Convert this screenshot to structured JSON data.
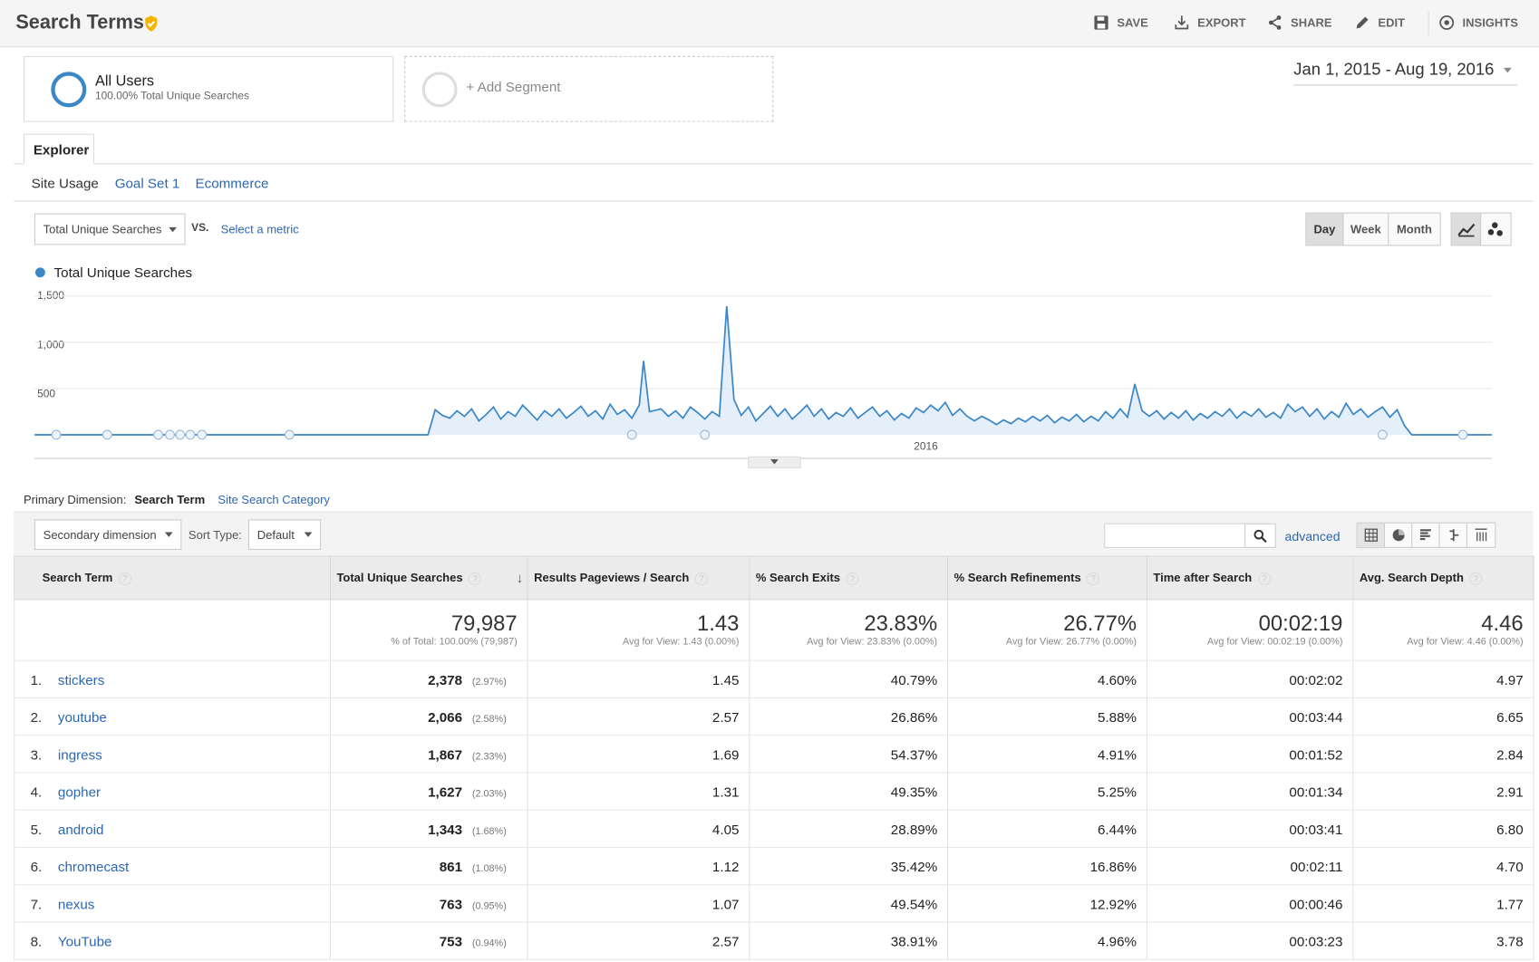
{
  "page": {
    "title": "Search Terms"
  },
  "toolbar": {
    "save": "SAVE",
    "export": "EXPORT",
    "share": "SHARE",
    "edit": "EDIT",
    "insights": "INSIGHTS"
  },
  "segments": {
    "primary_name": "All Users",
    "primary_desc": "100.00% Total Unique Searches",
    "add": "+ Add Segment"
  },
  "date_range": "Jan 1, 2015 - Aug 19, 2016",
  "tabs": {
    "explorer": "Explorer"
  },
  "subtabs": {
    "site_usage": "Site Usage",
    "goal_set": "Goal Set 1",
    "ecommerce": "Ecommerce"
  },
  "metric": {
    "selected": "Total Unique Searches",
    "vs": "VS.",
    "select": "Select a metric"
  },
  "granularity": {
    "day": "Day",
    "week": "Week",
    "month": "Month",
    "active": "Day"
  },
  "chart_data": {
    "type": "line",
    "series": [
      {
        "name": "Total Unique Searches",
        "color": "#3b87c8"
      }
    ],
    "ylim": [
      0,
      1500
    ],
    "yticks": [
      "1,500",
      "1,000",
      "500"
    ],
    "xtick": "2016",
    "points": [
      [
        0,
        0
      ],
      [
        0.08,
        0
      ],
      [
        0.27,
        0
      ],
      [
        0.275,
        270
      ],
      [
        0.28,
        210
      ],
      [
        0.285,
        180
      ],
      [
        0.29,
        260
      ],
      [
        0.295,
        200
      ],
      [
        0.3,
        280
      ],
      [
        0.305,
        150
      ],
      [
        0.31,
        220
      ],
      [
        0.315,
        300
      ],
      [
        0.32,
        170
      ],
      [
        0.325,
        250
      ],
      [
        0.33,
        200
      ],
      [
        0.335,
        320
      ],
      [
        0.34,
        240
      ],
      [
        0.345,
        160
      ],
      [
        0.35,
        260
      ],
      [
        0.355,
        200
      ],
      [
        0.36,
        280
      ],
      [
        0.365,
        180
      ],
      [
        0.37,
        240
      ],
      [
        0.375,
        310
      ],
      [
        0.38,
        200
      ],
      [
        0.385,
        260
      ],
      [
        0.39,
        170
      ],
      [
        0.395,
        330
      ],
      [
        0.4,
        220
      ],
      [
        0.405,
        270
      ],
      [
        0.41,
        180
      ],
      [
        0.415,
        320
      ],
      [
        0.418,
        800
      ],
      [
        0.422,
        250
      ],
      [
        0.43,
        280
      ],
      [
        0.435,
        200
      ],
      [
        0.44,
        260
      ],
      [
        0.445,
        180
      ],
      [
        0.45,
        300
      ],
      [
        0.455,
        240
      ],
      [
        0.46,
        170
      ],
      [
        0.465,
        250
      ],
      [
        0.47,
        200
      ],
      [
        0.475,
        1390
      ],
      [
        0.48,
        380
      ],
      [
        0.485,
        210
      ],
      [
        0.49,
        300
      ],
      [
        0.495,
        150
      ],
      [
        0.5,
        230
      ],
      [
        0.505,
        310
      ],
      [
        0.51,
        200
      ],
      [
        0.515,
        280
      ],
      [
        0.52,
        170
      ],
      [
        0.525,
        240
      ],
      [
        0.53,
        320
      ],
      [
        0.535,
        200
      ],
      [
        0.54,
        280
      ],
      [
        0.545,
        170
      ],
      [
        0.55,
        240
      ],
      [
        0.555,
        200
      ],
      [
        0.56,
        290
      ],
      [
        0.565,
        180
      ],
      [
        0.57,
        240
      ],
      [
        0.575,
        300
      ],
      [
        0.58,
        200
      ],
      [
        0.585,
        260
      ],
      [
        0.59,
        160
      ],
      [
        0.595,
        230
      ],
      [
        0.6,
        180
      ],
      [
        0.605,
        290
      ],
      [
        0.61,
        240
      ],
      [
        0.615,
        320
      ],
      [
        0.62,
        260
      ],
      [
        0.625,
        350
      ],
      [
        0.63,
        210
      ],
      [
        0.635,
        280
      ],
      [
        0.64,
        200
      ],
      [
        0.645,
        150
      ],
      [
        0.65,
        200
      ],
      [
        0.655,
        160
      ],
      [
        0.66,
        110
      ],
      [
        0.665,
        160
      ],
      [
        0.67,
        120
      ],
      [
        0.675,
        180
      ],
      [
        0.68,
        140
      ],
      [
        0.685,
        200
      ],
      [
        0.69,
        150
      ],
      [
        0.695,
        210
      ],
      [
        0.7,
        130
      ],
      [
        0.705,
        190
      ],
      [
        0.71,
        150
      ],
      [
        0.715,
        220
      ],
      [
        0.72,
        140
      ],
      [
        0.725,
        200
      ],
      [
        0.73,
        150
      ],
      [
        0.735,
        250
      ],
      [
        0.74,
        180
      ],
      [
        0.745,
        280
      ],
      [
        0.75,
        190
      ],
      [
        0.755,
        550
      ],
      [
        0.76,
        260
      ],
      [
        0.765,
        200
      ],
      [
        0.77,
        260
      ],
      [
        0.775,
        170
      ],
      [
        0.78,
        240
      ],
      [
        0.785,
        180
      ],
      [
        0.79,
        260
      ],
      [
        0.795,
        160
      ],
      [
        0.8,
        230
      ],
      [
        0.805,
        180
      ],
      [
        0.81,
        250
      ],
      [
        0.815,
        200
      ],
      [
        0.82,
        280
      ],
      [
        0.825,
        180
      ],
      [
        0.83,
        250
      ],
      [
        0.835,
        200
      ],
      [
        0.84,
        280
      ],
      [
        0.845,
        190
      ],
      [
        0.85,
        240
      ],
      [
        0.855,
        180
      ],
      [
        0.86,
        330
      ],
      [
        0.865,
        250
      ],
      [
        0.87,
        300
      ],
      [
        0.875,
        200
      ],
      [
        0.88,
        280
      ],
      [
        0.885,
        170
      ],
      [
        0.89,
        250
      ],
      [
        0.895,
        190
      ],
      [
        0.9,
        340
      ],
      [
        0.905,
        220
      ],
      [
        0.91,
        280
      ],
      [
        0.915,
        190
      ],
      [
        0.92,
        250
      ],
      [
        0.925,
        300
      ],
      [
        0.93,
        190
      ],
      [
        0.935,
        270
      ],
      [
        0.94,
        100
      ],
      [
        0.945,
        0
      ],
      [
        0.96,
        0
      ],
      [
        1,
        0
      ]
    ]
  },
  "dimension": {
    "label": "Primary Dimension:",
    "current": "Search Term",
    "other": "Site Search Category"
  },
  "controls": {
    "secondary": "Secondary dimension",
    "sort_label": "Sort Type:",
    "sort_value": "Default",
    "advanced": "advanced",
    "search_value": ""
  },
  "table": {
    "headers": [
      "Search Term",
      "Total Unique Searches",
      "Results Pageviews / Search",
      "% Search Exits",
      "% Search Refinements",
      "Time after Search",
      "Avg. Search Depth"
    ],
    "totals": [
      {
        "big": "79,987",
        "sub": "% of Total: 100.00% (79,987)"
      },
      {
        "big": "1.43",
        "sub": "Avg for View: 1.43 (0.00%)"
      },
      {
        "big": "23.83%",
        "sub": "Avg for View: 23.83% (0.00%)"
      },
      {
        "big": "26.77%",
        "sub": "Avg for View: 26.77% (0.00%)"
      },
      {
        "big": "00:02:19",
        "sub": "Avg for View: 00:02:19 (0.00%)"
      },
      {
        "big": "4.46",
        "sub": "Avg for View: 4.46 (0.00%)"
      }
    ],
    "rows": [
      {
        "n": "1.",
        "term": "stickers",
        "searches": "2,378",
        "pct": "(2.97%)",
        "rpv": "1.45",
        "exits": "40.79%",
        "ref": "4.60%",
        "time": "00:02:02",
        "depth": "4.97"
      },
      {
        "n": "2.",
        "term": "youtube",
        "searches": "2,066",
        "pct": "(2.58%)",
        "rpv": "2.57",
        "exits": "26.86%",
        "ref": "5.88%",
        "time": "00:03:44",
        "depth": "6.65"
      },
      {
        "n": "3.",
        "term": "ingress",
        "searches": "1,867",
        "pct": "(2.33%)",
        "rpv": "1.69",
        "exits": "54.37%",
        "ref": "4.91%",
        "time": "00:01:52",
        "depth": "2.84"
      },
      {
        "n": "4.",
        "term": "gopher",
        "searches": "1,627",
        "pct": "(2.03%)",
        "rpv": "1.31",
        "exits": "49.35%",
        "ref": "5.25%",
        "time": "00:01:34",
        "depth": "2.91"
      },
      {
        "n": "5.",
        "term": "android",
        "searches": "1,343",
        "pct": "(1.68%)",
        "rpv": "4.05",
        "exits": "28.89%",
        "ref": "6.44%",
        "time": "00:03:41",
        "depth": "6.80"
      },
      {
        "n": "6.",
        "term": "chromecast",
        "searches": "861",
        "pct": "(1.08%)",
        "rpv": "1.12",
        "exits": "35.42%",
        "ref": "16.86%",
        "time": "00:02:11",
        "depth": "4.70"
      },
      {
        "n": "7.",
        "term": "nexus",
        "searches": "763",
        "pct": "(0.95%)",
        "rpv": "1.07",
        "exits": "49.54%",
        "ref": "12.92%",
        "time": "00:00:46",
        "depth": "1.77"
      },
      {
        "n": "8.",
        "term": "YouTube",
        "searches": "753",
        "pct": "(0.94%)",
        "rpv": "2.57",
        "exits": "38.91%",
        "ref": "4.96%",
        "time": "00:03:23",
        "depth": "3.78"
      }
    ]
  }
}
